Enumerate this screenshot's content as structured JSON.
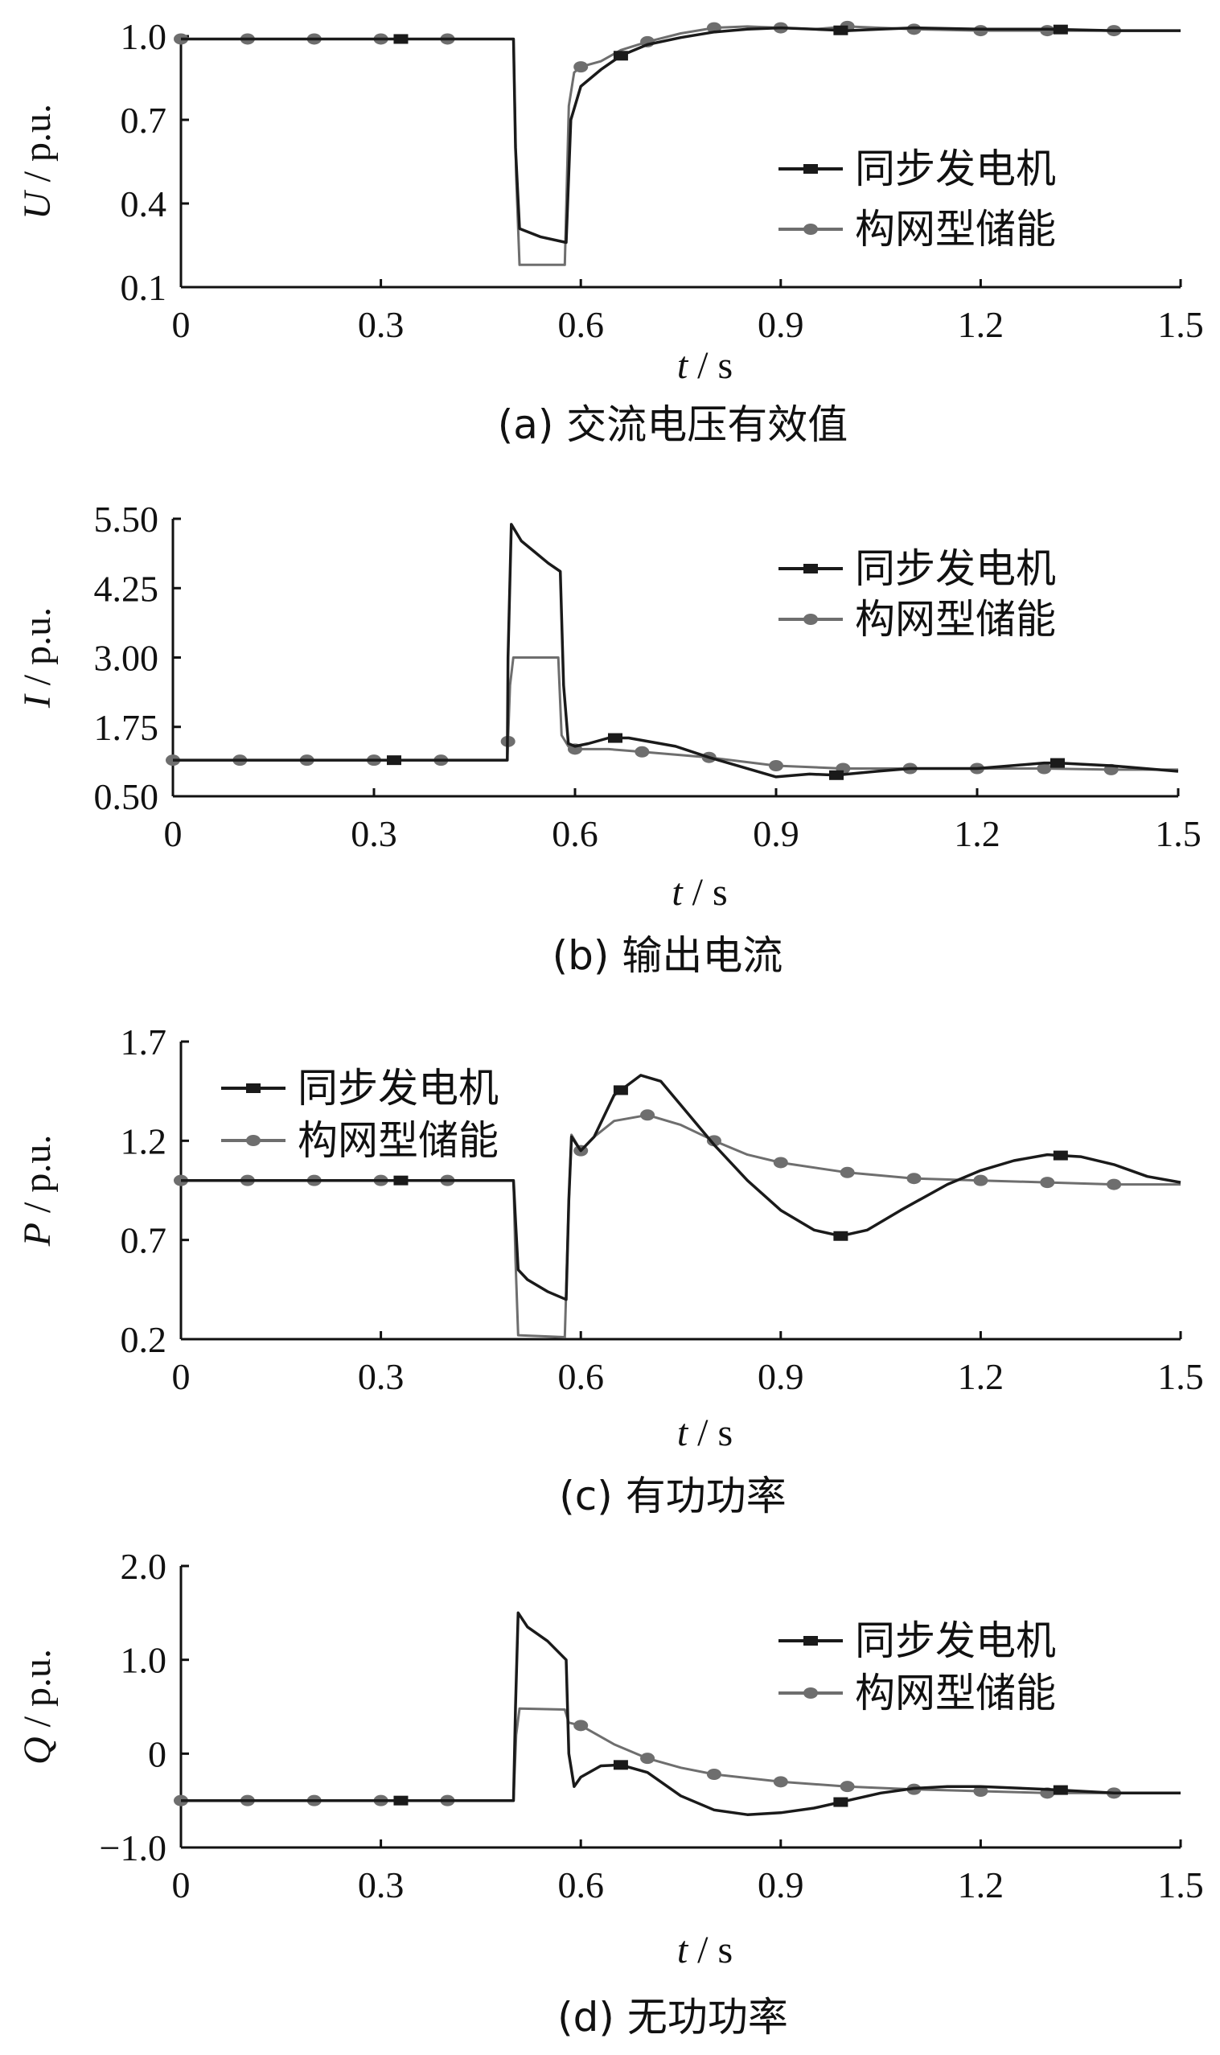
{
  "chart_data": [
    {
      "type": "line",
      "caption": "(a)  交流电压有效值",
      "ylabel_var": "U",
      "ylabel_unit": " / p.u.",
      "xlabel_var": "t",
      "xlabel_unit": " / s",
      "xlim": [
        0,
        1.5
      ],
      "ylim": [
        0.1,
        1.0
      ],
      "xticks": [
        0,
        0.3,
        0.6,
        0.9,
        1.2,
        1.5
      ],
      "xtick_labels": [
        "0",
        "0.3",
        "0.6",
        "0.9",
        "1.2",
        "1.5"
      ],
      "yticks": [
        0.1,
        0.4,
        0.7,
        1.0
      ],
      "ytick_labels": [
        "0.1",
        "0.4",
        "0.7",
        "1.0"
      ],
      "legend_position": "right-middle",
      "series": [
        {
          "name": "同步发电机",
          "marker": "square",
          "marker_x": [
            0.33,
            0.66,
            0.99,
            1.32
          ],
          "x": [
            0,
            0.499,
            0.502,
            0.508,
            0.54,
            0.578,
            0.585,
            0.6,
            0.63,
            0.66,
            0.7,
            0.75,
            0.8,
            0.85,
            0.9,
            0.95,
            1.0,
            1.05,
            1.1,
            1.2,
            1.3,
            1.4,
            1.5
          ],
          "y": [
            0.99,
            0.99,
            0.6,
            0.31,
            0.28,
            0.26,
            0.7,
            0.82,
            0.88,
            0.93,
            0.97,
            0.995,
            1.015,
            1.025,
            1.03,
            1.025,
            1.02,
            1.025,
            1.03,
            1.025,
            1.025,
            1.02,
            1.02
          ]
        },
        {
          "name": "构网型储能",
          "marker": "circle",
          "marker_x": [
            0,
            0.1,
            0.2,
            0.3,
            0.4,
            0.6,
            0.7,
            0.8,
            0.9,
            1.0,
            1.1,
            1.2,
            1.3,
            1.4
          ],
          "x": [
            0,
            0.499,
            0.503,
            0.508,
            0.576,
            0.582,
            0.59,
            0.6,
            0.63,
            0.66,
            0.7,
            0.75,
            0.8,
            0.85,
            0.9,
            0.95,
            1.0,
            1.05,
            1.1,
            1.2,
            1.3,
            1.4,
            1.5
          ],
          "y": [
            0.99,
            0.99,
            0.5,
            0.18,
            0.18,
            0.75,
            0.87,
            0.89,
            0.91,
            0.95,
            0.98,
            1.01,
            1.03,
            1.035,
            1.03,
            1.025,
            1.035,
            1.03,
            1.025,
            1.02,
            1.02,
            1.02,
            1.02
          ]
        }
      ]
    },
    {
      "type": "line",
      "caption": "(b)  输出电流",
      "ylabel_var": "I",
      "ylabel_unit": " / p.u.",
      "xlabel_var": "t",
      "xlabel_unit": " / s",
      "xlim": [
        0,
        1.5
      ],
      "ylim": [
        0.5,
        5.5
      ],
      "xticks": [
        0,
        0.3,
        0.6,
        0.9,
        1.2,
        1.5
      ],
      "xtick_labels": [
        "0",
        "0.3",
        "0.6",
        "0.9",
        "1.2",
        "1.5"
      ],
      "yticks": [
        0.5,
        1.75,
        3.0,
        4.25,
        5.5
      ],
      "ytick_labels": [
        "0.50",
        "1.75",
        "3.00",
        "4.25",
        "5.50"
      ],
      "legend_position": "top-right",
      "series": [
        {
          "name": "同步发电机",
          "marker": "square",
          "marker_x": [
            0.33,
            0.66,
            0.99,
            1.32
          ],
          "x": [
            0,
            0.499,
            0.5,
            0.505,
            0.52,
            0.54,
            0.56,
            0.578,
            0.583,
            0.59,
            0.6,
            0.62,
            0.65,
            0.68,
            0.75,
            0.8,
            0.9,
            0.95,
            0.99,
            1.05,
            1.1,
            1.2,
            1.3,
            1.32,
            1.4,
            1.5
          ],
          "y": [
            1.15,
            1.15,
            3.0,
            5.4,
            5.1,
            4.9,
            4.7,
            4.55,
            2.5,
            1.45,
            1.4,
            1.45,
            1.55,
            1.55,
            1.4,
            1.2,
            0.85,
            0.9,
            0.88,
            0.95,
            1.0,
            1.0,
            1.1,
            1.1,
            1.05,
            0.95
          ]
        },
        {
          "name": "构网型储能",
          "marker": "circle",
          "marker_x": [
            0,
            0.1,
            0.2,
            0.3,
            0.4,
            0.5,
            0.6,
            0.7,
            0.8,
            0.9,
            1.0,
            1.1,
            1.2,
            1.3,
            1.4
          ],
          "x": [
            0,
            0.499,
            0.503,
            0.508,
            0.575,
            0.58,
            0.59,
            0.6,
            0.65,
            0.7,
            0.8,
            0.9,
            1.0,
            1.1,
            1.2,
            1.3,
            1.4,
            1.5
          ],
          "y": [
            1.15,
            1.15,
            2.5,
            3.0,
            3.0,
            1.6,
            1.4,
            1.35,
            1.35,
            1.3,
            1.2,
            1.05,
            1.0,
            1.0,
            1.0,
            1.0,
            0.98,
            0.98
          ]
        }
      ]
    },
    {
      "type": "line",
      "caption": "(c)  有功功率",
      "ylabel_var": "P",
      "ylabel_unit": " / p.u.",
      "xlabel_var": "t",
      "xlabel_unit": " / s",
      "xlim": [
        0,
        1.5
      ],
      "ylim": [
        0.2,
        1.7
      ],
      "xticks": [
        0,
        0.3,
        0.6,
        0.9,
        1.2,
        1.5
      ],
      "xtick_labels": [
        "0",
        "0.3",
        "0.6",
        "0.9",
        "1.2",
        "1.5"
      ],
      "yticks": [
        0.2,
        0.7,
        1.2,
        1.7
      ],
      "ytick_labels": [
        "0.2",
        "0.7",
        "1.2",
        "1.7"
      ],
      "legend_position": "top-left",
      "series": [
        {
          "name": "同步发电机",
          "marker": "square",
          "marker_x": [
            0.33,
            0.66,
            0.99,
            1.32
          ],
          "x": [
            0,
            0.499,
            0.502,
            0.506,
            0.52,
            0.55,
            0.578,
            0.582,
            0.586,
            0.6,
            0.62,
            0.65,
            0.69,
            0.72,
            0.75,
            0.8,
            0.85,
            0.9,
            0.95,
            0.99,
            1.03,
            1.08,
            1.15,
            1.2,
            1.25,
            1.3,
            1.35,
            1.4,
            1.45,
            1.5
          ],
          "y": [
            1.0,
            1.0,
            0.8,
            0.55,
            0.5,
            0.44,
            0.4,
            0.9,
            1.22,
            1.15,
            1.22,
            1.43,
            1.53,
            1.5,
            1.38,
            1.18,
            1.0,
            0.85,
            0.75,
            0.72,
            0.75,
            0.85,
            0.98,
            1.05,
            1.1,
            1.13,
            1.12,
            1.08,
            1.02,
            0.99
          ]
        },
        {
          "name": "构网型储能",
          "marker": "circle",
          "marker_x": [
            0,
            0.1,
            0.2,
            0.3,
            0.4,
            0.6,
            0.7,
            0.8,
            0.9,
            1.0,
            1.1,
            1.2,
            1.3,
            1.4
          ],
          "x": [
            0,
            0.499,
            0.502,
            0.506,
            0.576,
            0.582,
            0.586,
            0.6,
            0.62,
            0.65,
            0.7,
            0.75,
            0.8,
            0.85,
            0.9,
            1.0,
            1.1,
            1.2,
            1.3,
            1.4,
            1.5
          ],
          "y": [
            1.0,
            1.0,
            0.6,
            0.22,
            0.21,
            0.9,
            1.23,
            1.15,
            1.22,
            1.3,
            1.33,
            1.28,
            1.2,
            1.13,
            1.09,
            1.04,
            1.01,
            1.0,
            0.99,
            0.98,
            0.98
          ]
        }
      ]
    },
    {
      "type": "line",
      "caption": "(d)  无功功率",
      "ylabel_var": "Q",
      "ylabel_unit": " / p.u.",
      "xlabel_var": "t",
      "xlabel_unit": " / s",
      "xlim": [
        0,
        1.5
      ],
      "ylim": [
        -1.0,
        2.0
      ],
      "xticks": [
        0,
        0.3,
        0.6,
        0.9,
        1.2,
        1.5
      ],
      "xtick_labels": [
        "0",
        "0.3",
        "0.6",
        "0.9",
        "1.2",
        "1.5"
      ],
      "yticks": [
        -1.0,
        0,
        1.0,
        2.0
      ],
      "ytick_labels": [
        "−1.0",
        "0",
        "1.0",
        "2.0"
      ],
      "legend_position": "top-right",
      "series": [
        {
          "name": "同步发电机",
          "marker": "square",
          "marker_x": [
            0.33,
            0.66,
            0.99,
            1.32
          ],
          "x": [
            0,
            0.499,
            0.502,
            0.506,
            0.52,
            0.55,
            0.578,
            0.582,
            0.59,
            0.6,
            0.63,
            0.66,
            0.7,
            0.75,
            0.8,
            0.85,
            0.9,
            0.95,
            1.0,
            1.05,
            1.1,
            1.15,
            1.2,
            1.3,
            1.4,
            1.5
          ],
          "y": [
            -0.5,
            -0.5,
            0.5,
            1.5,
            1.35,
            1.2,
            1.0,
            0.0,
            -0.35,
            -0.25,
            -0.13,
            -0.12,
            -0.2,
            -0.45,
            -0.6,
            -0.65,
            -0.63,
            -0.58,
            -0.5,
            -0.42,
            -0.37,
            -0.35,
            -0.35,
            -0.38,
            -0.42,
            -0.42
          ]
        },
        {
          "name": "构网型储能",
          "marker": "circle",
          "marker_x": [
            0,
            0.1,
            0.2,
            0.3,
            0.4,
            0.6,
            0.7,
            0.8,
            0.9,
            1.0,
            1.1,
            1.2,
            1.3,
            1.4
          ],
          "x": [
            0,
            0.499,
            0.503,
            0.508,
            0.576,
            0.582,
            0.6,
            0.65,
            0.7,
            0.75,
            0.8,
            0.9,
            1.0,
            1.1,
            1.2,
            1.3,
            1.4,
            1.5
          ],
          "y": [
            -0.5,
            -0.5,
            0.2,
            0.48,
            0.47,
            0.33,
            0.3,
            0.1,
            -0.05,
            -0.15,
            -0.22,
            -0.3,
            -0.35,
            -0.38,
            -0.4,
            -0.42,
            -0.42,
            -0.42
          ]
        }
      ]
    }
  ],
  "colors": {
    "syncgen": "#1a1a1a",
    "gfm": "#6e6e6e",
    "axis": "#111111"
  }
}
